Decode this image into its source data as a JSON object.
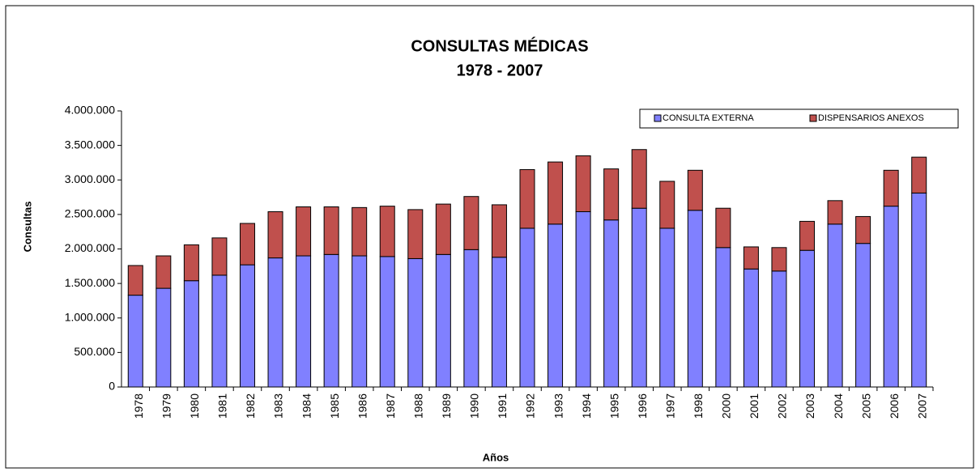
{
  "chart_data": {
    "type": "stacked_bar",
    "title": "CONSULTAS MÉDICAS",
    "subtitle": "1978 - 2007",
    "x_label": "Años",
    "y_label": "Consultas",
    "categories": [
      "1978",
      "1979",
      "1980",
      "1981",
      "1982",
      "1983",
      "1984",
      "1985",
      "1986",
      "1987",
      "1988",
      "1989",
      "1990",
      "1991",
      "1992",
      "1993",
      "1994",
      "1995",
      "1996",
      "1997",
      "1998",
      "2000",
      "2001",
      "2002",
      "2003",
      "2004",
      "2005",
      "2006",
      "2007"
    ],
    "series": [
      {
        "name": "CONSULTA EXTERNA",
        "color": "#8080ff",
        "values": [
          1330000,
          1430000,
          1540000,
          1620000,
          1770000,
          1870000,
          1900000,
          1920000,
          1900000,
          1890000,
          1860000,
          1920000,
          1990000,
          1880000,
          2300000,
          2360000,
          2540000,
          2420000,
          2590000,
          2300000,
          2560000,
          2020000,
          1710000,
          1680000,
          1980000,
          2360000,
          2080000,
          2620000,
          2810000
        ]
      },
      {
        "name": "DISPENSARIOS ANEXOS",
        "color": "#c0504d",
        "values": [
          430000,
          470000,
          520000,
          540000,
          600000,
          670000,
          710000,
          690000,
          700000,
          730000,
          710000,
          730000,
          770000,
          760000,
          850000,
          900000,
          810000,
          740000,
          850000,
          680000,
          580000,
          570000,
          320000,
          340000,
          420000,
          340000,
          390000,
          520000,
          520000
        ]
      }
    ],
    "ylim": [
      0,
      4000000
    ],
    "yticks": [
      0,
      {
        "value": 500000,
        "label": "500.000"
      },
      {
        "value": 1000000,
        "label": "1.000.000"
      },
      {
        "value": 1500000,
        "label": "1.500.000"
      },
      {
        "value": 2000000,
        "label": "2.000.000"
      },
      {
        "value": 2500000,
        "label": "2.500.000"
      },
      {
        "value": 3000000,
        "label": "3.000.000"
      },
      {
        "value": 3500000,
        "label": "3.500.000"
      },
      {
        "value": 4000000,
        "label": "4.000.000"
      }
    ],
    "grid": false,
    "legend": "top-right"
  }
}
